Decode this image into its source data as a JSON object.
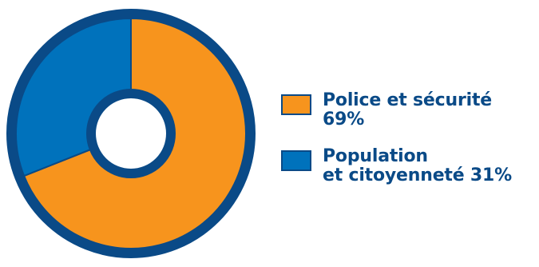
{
  "chart_data": {
    "type": "pie",
    "title": "",
    "series": [
      {
        "name": "Police et sécurité",
        "value": 69,
        "label": "Police et sécurité 69%",
        "color": "#f7941d"
      },
      {
        "name": "Population et citoyenneté",
        "value": 31,
        "label": "Population\net citoyenneté 31%",
        "color": "#0072bc"
      }
    ],
    "ring_color": "#0a4a87",
    "legend_position": "right"
  }
}
